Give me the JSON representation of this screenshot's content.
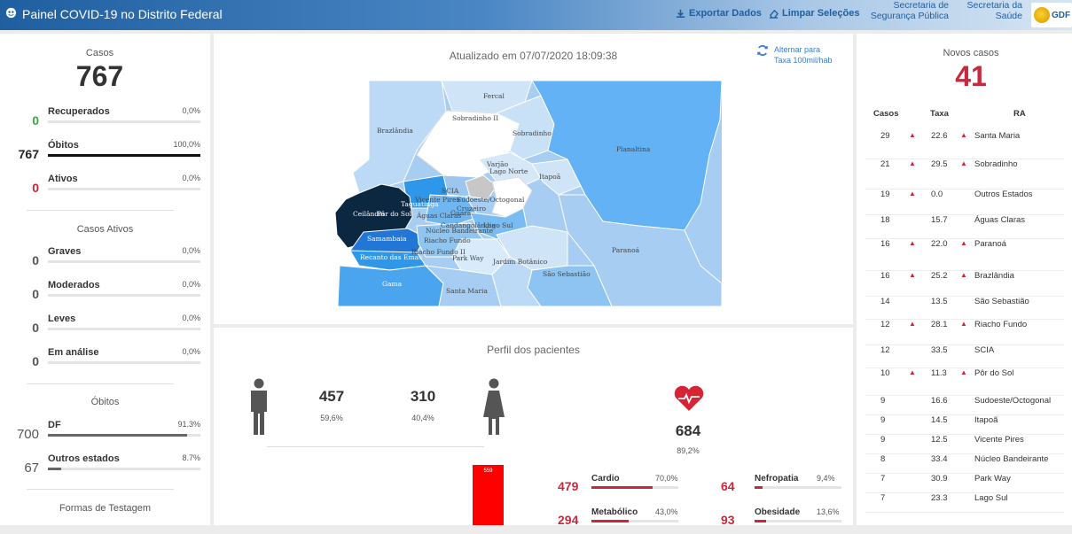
{
  "header": {
    "title": "Painel COVID-19 no Distrito Federal",
    "export_label": "Exportar Dados",
    "clear_label": "Limpar Seleções",
    "secretaria_seg": [
      "Secretaria de",
      "Segurança Pública"
    ],
    "secretaria_saude": [
      "Secretaria da",
      "Saúde"
    ],
    "logo_text": "GDF"
  },
  "left": {
    "casos_label": "Casos",
    "casos_value": "767",
    "status": [
      {
        "num": "0",
        "label": "Recuperados",
        "pct": "0,0%",
        "color": "#3aa845",
        "fill": 0
      },
      {
        "num": "767",
        "label": "Óbitos",
        "pct": "100,0%",
        "color": "#222222",
        "fill": 1.0
      },
      {
        "num": "0",
        "label": "Ativos",
        "pct": "0,0%",
        "color": "#c8283c",
        "fill": 0
      }
    ],
    "ativos_title": "Casos Ativos",
    "ativos": [
      {
        "num": "0",
        "label": "Graves",
        "pct": "0,0%",
        "fill": 0
      },
      {
        "num": "0",
        "label": "Moderados",
        "pct": "0,0%",
        "fill": 0
      },
      {
        "num": "0",
        "label": "Leves",
        "pct": "0,0%",
        "fill": 0
      },
      {
        "num": "0",
        "label": "Em análise",
        "pct": "0,0%",
        "fill": 0
      }
    ],
    "obitos_title": "Óbitos",
    "obitos": [
      {
        "num": "700",
        "label": "DF",
        "pct": "91.3%",
        "fill": 0.913
      },
      {
        "num": "67",
        "label": "Outros estados",
        "pct": "8.7%",
        "fill": 0.087
      }
    ],
    "testagem_title": "Formas de Testagem"
  },
  "map": {
    "updated": "Atualizado em 07/07/2020 18:09:38",
    "toggle_label": [
      "Alternar para",
      "Taxa 100mil/hab"
    ],
    "regions": [
      "Fercal",
      "Sobradinho II",
      "Brazlândia",
      "Sobradinho",
      "Planaltina",
      "Varjão",
      "Lago Norte",
      "Itapoã",
      "SCIA",
      "Vicente Pires",
      "Sudoeste/Octogonal",
      "Taguatinga",
      "Ceilândia",
      "Pôr do Sol",
      "Águas Claras",
      "Guará",
      "Cruzeiro",
      "Candangolândia",
      "Lago Sul",
      "Núcleo Bandeirante",
      "Riacho Fundo",
      "Samambaia",
      "Riacho Fundo II",
      "Park Way",
      "Recanto das Emas",
      "Jardim Botânico",
      "Paranoá",
      "São Sebastião",
      "Gama",
      "Santa Maria"
    ]
  },
  "profile": {
    "title": "Perfil dos pacientes",
    "male_num": "457",
    "male_pct": "59,6%",
    "female_num": "310",
    "female_pct": "40,4%",
    "comorb_num": "684",
    "comorb_pct": "89,2%",
    "bar_label": "559",
    "conditions": [
      {
        "num": "479",
        "label": "Cardio",
        "pct": "70,0%",
        "fill": 0.7
      },
      {
        "num": "64",
        "label": "Nefropatia",
        "pct": "9,4%",
        "fill": 0.094
      },
      {
        "num": "294",
        "label": "Metabólico",
        "pct": "43,0%",
        "fill": 0.43
      },
      {
        "num": "93",
        "label": "Obesidade",
        "pct": "13,6%",
        "fill": 0.136
      }
    ]
  },
  "right": {
    "novos_label": "Novos casos",
    "novos_value": "41",
    "headers": [
      "Casos",
      "Taxa",
      "RA"
    ],
    "rows": [
      {
        "casos": "29",
        "up1": true,
        "taxa": "22.6",
        "up2": true,
        "ra": "Santa Maria"
      },
      {
        "casos": "21",
        "up1": true,
        "taxa": "29.5",
        "up2": true,
        "ra": "Sobradinho"
      },
      {
        "casos": "19",
        "up1": true,
        "taxa": "0.0",
        "up2": false,
        "ra": "Outros Estados"
      },
      {
        "casos": "18",
        "up1": false,
        "taxa": "15.7",
        "up2": false,
        "ra": "Águas Claras"
      },
      {
        "casos": "16",
        "up1": true,
        "taxa": "22.0",
        "up2": true,
        "ra": "Paranoá"
      },
      {
        "casos": "16",
        "up1": true,
        "taxa": "25.2",
        "up2": true,
        "ra": "Brazlândia"
      },
      {
        "casos": "14",
        "up1": false,
        "taxa": "13.5",
        "up2": false,
        "ra": "São Sebastião"
      },
      {
        "casos": "12",
        "up1": true,
        "taxa": "28.1",
        "up2": true,
        "ra": "Riacho Fundo"
      },
      {
        "casos": "12",
        "up1": false,
        "taxa": "33.5",
        "up2": false,
        "ra": "SCIA"
      },
      {
        "casos": "10",
        "up1": true,
        "taxa": "11.3",
        "up2": true,
        "ra": "Pôr do Sol"
      },
      {
        "casos": "9",
        "up1": false,
        "taxa": "16.6",
        "up2": false,
        "ra": "Sudoeste/Octogonal"
      },
      {
        "casos": "9",
        "up1": false,
        "taxa": "14.5",
        "up2": false,
        "ra": "Itapoã"
      },
      {
        "casos": "9",
        "up1": false,
        "taxa": "12.5",
        "up2": false,
        "ra": "Vicente Pires"
      },
      {
        "casos": "8",
        "up1": false,
        "taxa": "33.4",
        "up2": false,
        "ra": "Núcleo Bandeirante"
      },
      {
        "casos": "7",
        "up1": false,
        "taxa": "30.9",
        "up2": false,
        "ra": "Park Way"
      },
      {
        "casos": "7",
        "up1": false,
        "taxa": "23.3",
        "up2": false,
        "ra": "Lago Sul"
      }
    ]
  }
}
